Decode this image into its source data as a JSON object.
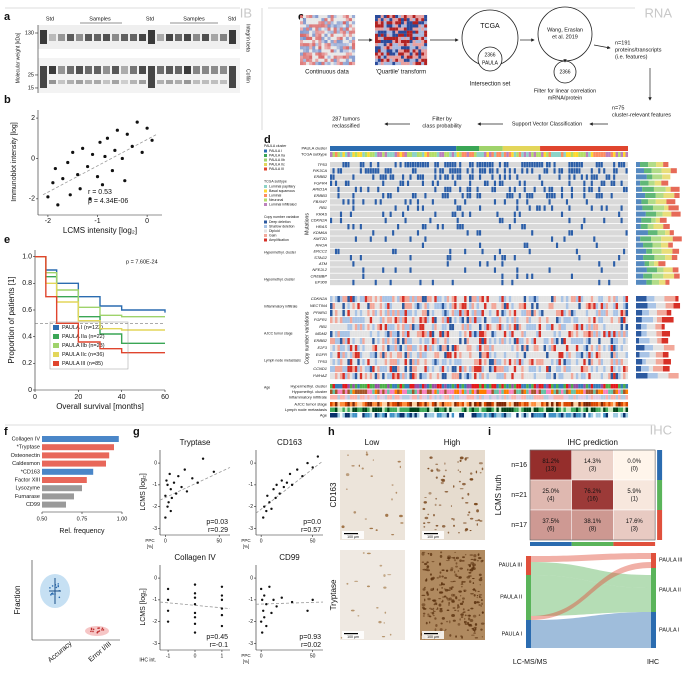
{
  "sections": [
    "IB",
    "RNA",
    "IHC"
  ],
  "panel_labels": [
    "a",
    "b",
    "c",
    "d",
    "e",
    "f",
    "g",
    "h",
    "i"
  ],
  "a": {
    "lanes": [
      "Std",
      "Samples",
      "Std",
      "Samples",
      "Std"
    ],
    "ylabel": "Molecular weight [kDa]",
    "yticks": [
      130,
      25,
      15
    ],
    "bands": [
      "Integrin beta",
      "Cofilin"
    ]
  },
  "b": {
    "type": "scatter",
    "xlabel": "LCMS intensity [log₂]",
    "ylabel": "Immunoblot intensity [log]",
    "xlim": [
      -2.2,
      0.3
    ],
    "ylim": [
      -2.8,
      2.4
    ],
    "xticks": [
      -2,
      -1,
      0
    ],
    "yticks": [
      -2,
      0,
      2
    ],
    "x": [
      -2.0,
      -1.9,
      -1.85,
      -1.8,
      -1.7,
      -1.6,
      -1.55,
      -1.5,
      -1.4,
      -1.35,
      -1.3,
      -1.2,
      -1.15,
      -1.1,
      -1.0,
      -0.95,
      -0.9,
      -0.85,
      -0.8,
      -0.7,
      -0.65,
      -0.6,
      -0.5,
      -0.45,
      -0.4,
      -0.3,
      -0.2,
      -0.1,
      0.0,
      0.1
    ],
    "y": [
      -1.9,
      -1.2,
      -0.5,
      -2.3,
      -1.0,
      -0.2,
      -1.8,
      0.3,
      -0.8,
      -1.5,
      0.5,
      -0.4,
      -2.0,
      0.2,
      -0.9,
      0.8,
      -1.3,
      0.1,
      1.0,
      -0.6,
      0.4,
      1.4,
      0.0,
      -1.1,
      1.2,
      0.6,
      1.8,
      0.3,
      1.5,
      0.9
    ],
    "trend": {
      "x": [
        -2.1,
        0.2
      ],
      "y": [
        -1.8,
        1.2
      ]
    },
    "annotations": [
      "r = 0.53",
      "p = 4.34E-06"
    ]
  },
  "c": {
    "continuous": "Continuous data",
    "quartile": "'Quartile' transform",
    "tcga": "TCGA",
    "overlap1": "2366",
    "paula": "PAULA",
    "intersection": "Intersection set",
    "wang": [
      "Wang, Eraslan",
      "et al. 2019"
    ],
    "overlap2": "2366",
    "filter_corr": [
      "Filter for linear correlation",
      "mRNA/protein"
    ],
    "features": [
      "n=191",
      "proteins/transcripts",
      "(i.e. features)"
    ],
    "relevant": [
      "n=75",
      "cluster-relevant features"
    ],
    "svc": "Support Vector Classification",
    "prob": [
      "Filter by",
      "class probability"
    ],
    "reclassified": [
      "287 tumors",
      "reclassified"
    ]
  },
  "d": {
    "tracks_top": [
      "PAULA cluster",
      "TCGA subtype"
    ],
    "blocks": [
      "Mutations",
      "Copy number variations"
    ],
    "cluster_sizes": [
      122,
      22,
      23,
      36,
      85
    ],
    "mutations": [
      "TP53",
      "PIK3CA",
      "ERBB2",
      "FGFR4",
      "ARID1A",
      "ERBB3",
      "FBXW7",
      "RB1",
      "KRAS",
      "CDKN2A",
      "HRAS",
      "KDM6A",
      "KMT2D",
      "RHOA",
      "ERCC2",
      "STAG2",
      "ATM",
      "NFE2L2",
      "CREBBP",
      "EP300"
    ],
    "cnv": [
      "CDKN2A",
      "NECTIN4",
      "PPARG",
      "FGFR1",
      "RB1",
      "MDM2",
      "ERBB2",
      "E2F3",
      "EGFR",
      "TP53",
      "CCND1",
      "YWHAZ"
    ],
    "tracks_bottom": [
      "Hypermethyl. cluster",
      "Hypomethyl. cluster",
      "Inflammatory infiltrate",
      "AJCC tumor stage",
      "Lymph node metastasis",
      "Age"
    ],
    "mutation_color": "#2b5ea8",
    "legend": [
      {
        "title": "PAULA cluster",
        "items": [
          "PAULA I",
          "PAULA IIa",
          "PAULA IIb",
          "PAULA IIc",
          "PAULA III"
        ],
        "colors": [
          "#2b6cb0",
          "#3aa655",
          "#9fd36b",
          "#e3d65a",
          "#e0452e"
        ]
      },
      {
        "title": "TCGA subtype",
        "items": [
          "Luminal papillary",
          "Basal squamous",
          "Luminal",
          "Neuronal",
          "Luminal infiltrated"
        ],
        "colors": [
          "#8dd3c7",
          "#ffd92f",
          "#fc8d62",
          "#b3de69",
          "#bc80bd"
        ]
      },
      {
        "title": "Copy number variation",
        "items": [
          "Deep deletion",
          "Shallow deletion",
          "Diploid",
          "Gain",
          "Amplification"
        ],
        "colors": [
          "#2c5aa0",
          "#a9c4e6",
          "#e3e3e3",
          "#f2a89a",
          "#d73027"
        ]
      },
      {
        "title": "Hypermethyl. cluster"
      },
      {
        "title": "Hypomethyl. cluster"
      },
      {
        "title": "Inflammatory infiltrate"
      },
      {
        "title": "AJCC tumor stage"
      },
      {
        "title": "Lymph node metastasis"
      },
      {
        "title": "Age"
      }
    ]
  },
  "e": {
    "type": "line",
    "ylabel": "Proportion of patients [1]",
    "xlabel": "Overall survival [months]",
    "xlim": [
      0,
      60
    ],
    "ylim": [
      0,
      1.05
    ],
    "xticks": [
      0,
      20,
      40,
      60
    ],
    "yticks": [
      0,
      0.2,
      0.4,
      0.6,
      0.8,
      {
        "value": 1,
        "label": "1.0"
      }
    ],
    "annotation": "p = 7.60E-24",
    "median": 0.5,
    "x": [
      0,
      5,
      10,
      20,
      30,
      40,
      60
    ],
    "series": [
      {
        "name": "PAULA I (n=122)",
        "color": "#2b6cb0",
        "values": [
          1,
          0.9,
          0.8,
          0.7,
          0.63,
          0.6,
          0.58
        ]
      },
      {
        "name": "PAULA IIa (n=22)",
        "color": "#3aa655",
        "values": [
          1,
          0.85,
          0.7,
          0.55,
          0.42,
          0.35,
          0.35
        ]
      },
      {
        "name": "PAULA IIb (n=23)",
        "color": "#9fd36b",
        "values": [
          1,
          0.88,
          0.75,
          0.62,
          0.56,
          0.55,
          0.55
        ]
      },
      {
        "name": "PAULA IIc (n=36)",
        "color": "#e3d65a",
        "values": [
          1,
          0.8,
          0.66,
          0.52,
          0.46,
          0.45,
          0.45
        ]
      },
      {
        "name": "PAULA III (n=85)",
        "color": "#e0452e",
        "values": [
          1,
          0.7,
          0.5,
          0.36,
          0.31,
          0.28,
          0.28
        ]
      }
    ]
  },
  "f": {
    "type": "bar",
    "categories": [
      "Collagen IV",
      "*Tryptase",
      "Osteonectin",
      "Caldesmon",
      "*CD163",
      "Factor XIII",
      "Lysozyme",
      "Furnarase",
      "CD99"
    ],
    "values": [
      0.98,
      0.95,
      0.92,
      0.9,
      0.82,
      0.78,
      0.75,
      0.7,
      0.65
    ],
    "colors": [
      "#4a86c8",
      "#e8675a",
      "#e8675a",
      "#e8675a",
      "#4a86c8",
      "#e8675a",
      "#9a9a9a",
      "#9a9a9a",
      "#9a9a9a"
    ],
    "xlim": [
      0.5,
      1.0
    ],
    "xticks": [
      {
        "value": 0.5,
        "label": "0.50"
      },
      0.75,
      {
        "value": 1,
        "label": "1.00"
      }
    ],
    "xlabel": "Rel. frequency",
    "violin": {
      "ylabel": "Fraction",
      "categories": [
        "Accuracy",
        "Error I/III"
      ]
    }
  },
  "g": {
    "ylabel": "LCMS [log₂]",
    "plots": [
      {
        "title": "Tryptase",
        "xlabel": [
          "PPC",
          "[%]"
        ],
        "xlim": [
          -5,
          60
        ],
        "ylim": [
          -3.3,
          0.6
        ],
        "xticks": [
          0,
          50
        ],
        "yticks": [
          -3,
          -2,
          -1,
          0
        ],
        "x": [
          0,
          0,
          1,
          2,
          2,
          3,
          4,
          5,
          5,
          6,
          8,
          10,
          12,
          15,
          18,
          20,
          25,
          30,
          35,
          45
        ],
        "y": [
          -1.5,
          -2.5,
          -0.8,
          -2,
          -1,
          -1.8,
          -0.5,
          -2.2,
          -1.2,
          -1.6,
          -0.9,
          -1.4,
          -0.6,
          -1.1,
          -0.3,
          -1.3,
          -0.7,
          -0.9,
          0.2,
          -0.4
        ],
        "trend": {
          "x": [
            -5,
            60
          ],
          "y": [
            -1.7,
            -0.2
          ]
        },
        "stats": [
          "p=0.03",
          "r=0.29"
        ]
      },
      {
        "title": "CD163",
        "xlabel": [
          "PPC",
          "[%]"
        ],
        "xlim": [
          -5,
          60
        ],
        "ylim": [
          -3.3,
          0.6
        ],
        "xticks": [
          0,
          50
        ],
        "yticks": [
          -3,
          -2,
          -1,
          0
        ],
        "x": [
          2,
          3,
          5,
          6,
          8,
          10,
          12,
          14,
          15,
          18,
          20,
          22,
          25,
          28,
          30,
          35,
          40,
          45,
          50,
          55
        ],
        "y": [
          -2.5,
          -2,
          -2.2,
          -1.5,
          -1.8,
          -2.1,
          -1.2,
          -1.6,
          -1,
          -1.4,
          -0.8,
          -1.1,
          -0.9,
          -0.5,
          -1,
          -0.3,
          -0.6,
          0,
          -0.2,
          0.3
        ],
        "trend": {
          "x": [
            -5,
            60
          ],
          "y": [
            -2.3,
            0.1
          ]
        },
        "stats": [
          "p=0.0",
          "r=0.57"
        ]
      },
      {
        "title": "Collagen IV",
        "xlabel": "IHC int.",
        "xlim": [
          -1.3,
          1.3
        ],
        "ylim": [
          -3.3,
          0.6
        ],
        "xticks": [
          -1,
          0,
          1
        ],
        "yticks": [
          -3,
          -2,
          -1,
          0
        ],
        "x": [
          -1,
          -1,
          -1,
          -1,
          0,
          0,
          0,
          0,
          0,
          0,
          0,
          0,
          1,
          1,
          1,
          1,
          1,
          1
        ],
        "y": [
          -1,
          -2,
          -0.5,
          -1.5,
          -2.5,
          -1.8,
          -1.2,
          -0.9,
          -0.3,
          -1.6,
          -2.1,
          -0.7,
          -1.4,
          -0.8,
          -2.2,
          -1,
          -0.4,
          -1.7
        ],
        "trend": {
          "x": [
            -1.3,
            1.3
          ],
          "y": [
            -1.1,
            -1.4
          ]
        },
        "stats": [
          "p=0.45",
          "r=-0.1"
        ]
      },
      {
        "title": "CD99",
        "xlabel": [
          "PPC",
          "[%]"
        ],
        "xlim": [
          -5,
          60
        ],
        "ylim": [
          -3.3,
          0.6
        ],
        "xticks": [
          0,
          50
        ],
        "yticks": [
          -3,
          -2,
          -1,
          0
        ],
        "x": [
          0,
          0,
          1,
          1,
          2,
          3,
          3,
          5,
          5,
          8,
          10,
          12,
          15,
          20,
          30,
          45,
          50
        ],
        "y": [
          -0.5,
          -2,
          -1,
          -2.5,
          -1.5,
          -0.8,
          -1.8,
          -1.2,
          -2.2,
          -0.4,
          -1.6,
          -1,
          -1.3,
          -0.9,
          -1.1,
          -1.5,
          -1
        ],
        "trend": {
          "x": [
            -5,
            60
          ],
          "y": [
            -1.2,
            -1.1
          ]
        },
        "stats": [
          "p=0.93",
          "r=0.02"
        ]
      }
    ]
  },
  "h": {
    "columns": [
      "Low",
      "High"
    ],
    "rows": [
      "CD163",
      "Tryptase"
    ],
    "scale": "100 µm"
  },
  "i": {
    "title": "IHC prediction",
    "ylabel": "LCMS truth",
    "rows": [
      "n=16",
      "n=21",
      "n=17"
    ],
    "values": [
      [
        81.2,
        14.3,
        0.0
      ],
      [
        25.0,
        76.2,
        5.9
      ],
      [
        37.5,
        38.1,
        17.6
      ]
    ],
    "value_labels": [
      [
        "81.2%",
        "14.3%",
        "0.0%"
      ],
      [
        "25.0%",
        "76.2%",
        "5.9%"
      ],
      [
        "37.5%",
        "38.1%",
        "17.6%"
      ]
    ],
    "counts": [
      [
        13,
        3,
        0
      ],
      [
        4,
        16,
        1
      ],
      [
        6,
        8,
        3
      ]
    ],
    "count_labels": [
      [
        "(13)",
        "(3)",
        "(0)"
      ],
      [
        "(4)",
        "(16)",
        "(1)"
      ],
      [
        "(6)",
        "(8)",
        "(3)"
      ]
    ],
    "colors": [
      "#2b6cb0",
      "#5ab45a",
      "#e0503c"
    ],
    "flow": {
      "left": [
        "PAULA III",
        "PAULA II",
        "PAULA I"
      ],
      "right": [
        "PAULA III",
        "PAULA II",
        "PAULA I"
      ],
      "xlabels": [
        "LC-MS/MS",
        "IHC"
      ]
    }
  }
}
